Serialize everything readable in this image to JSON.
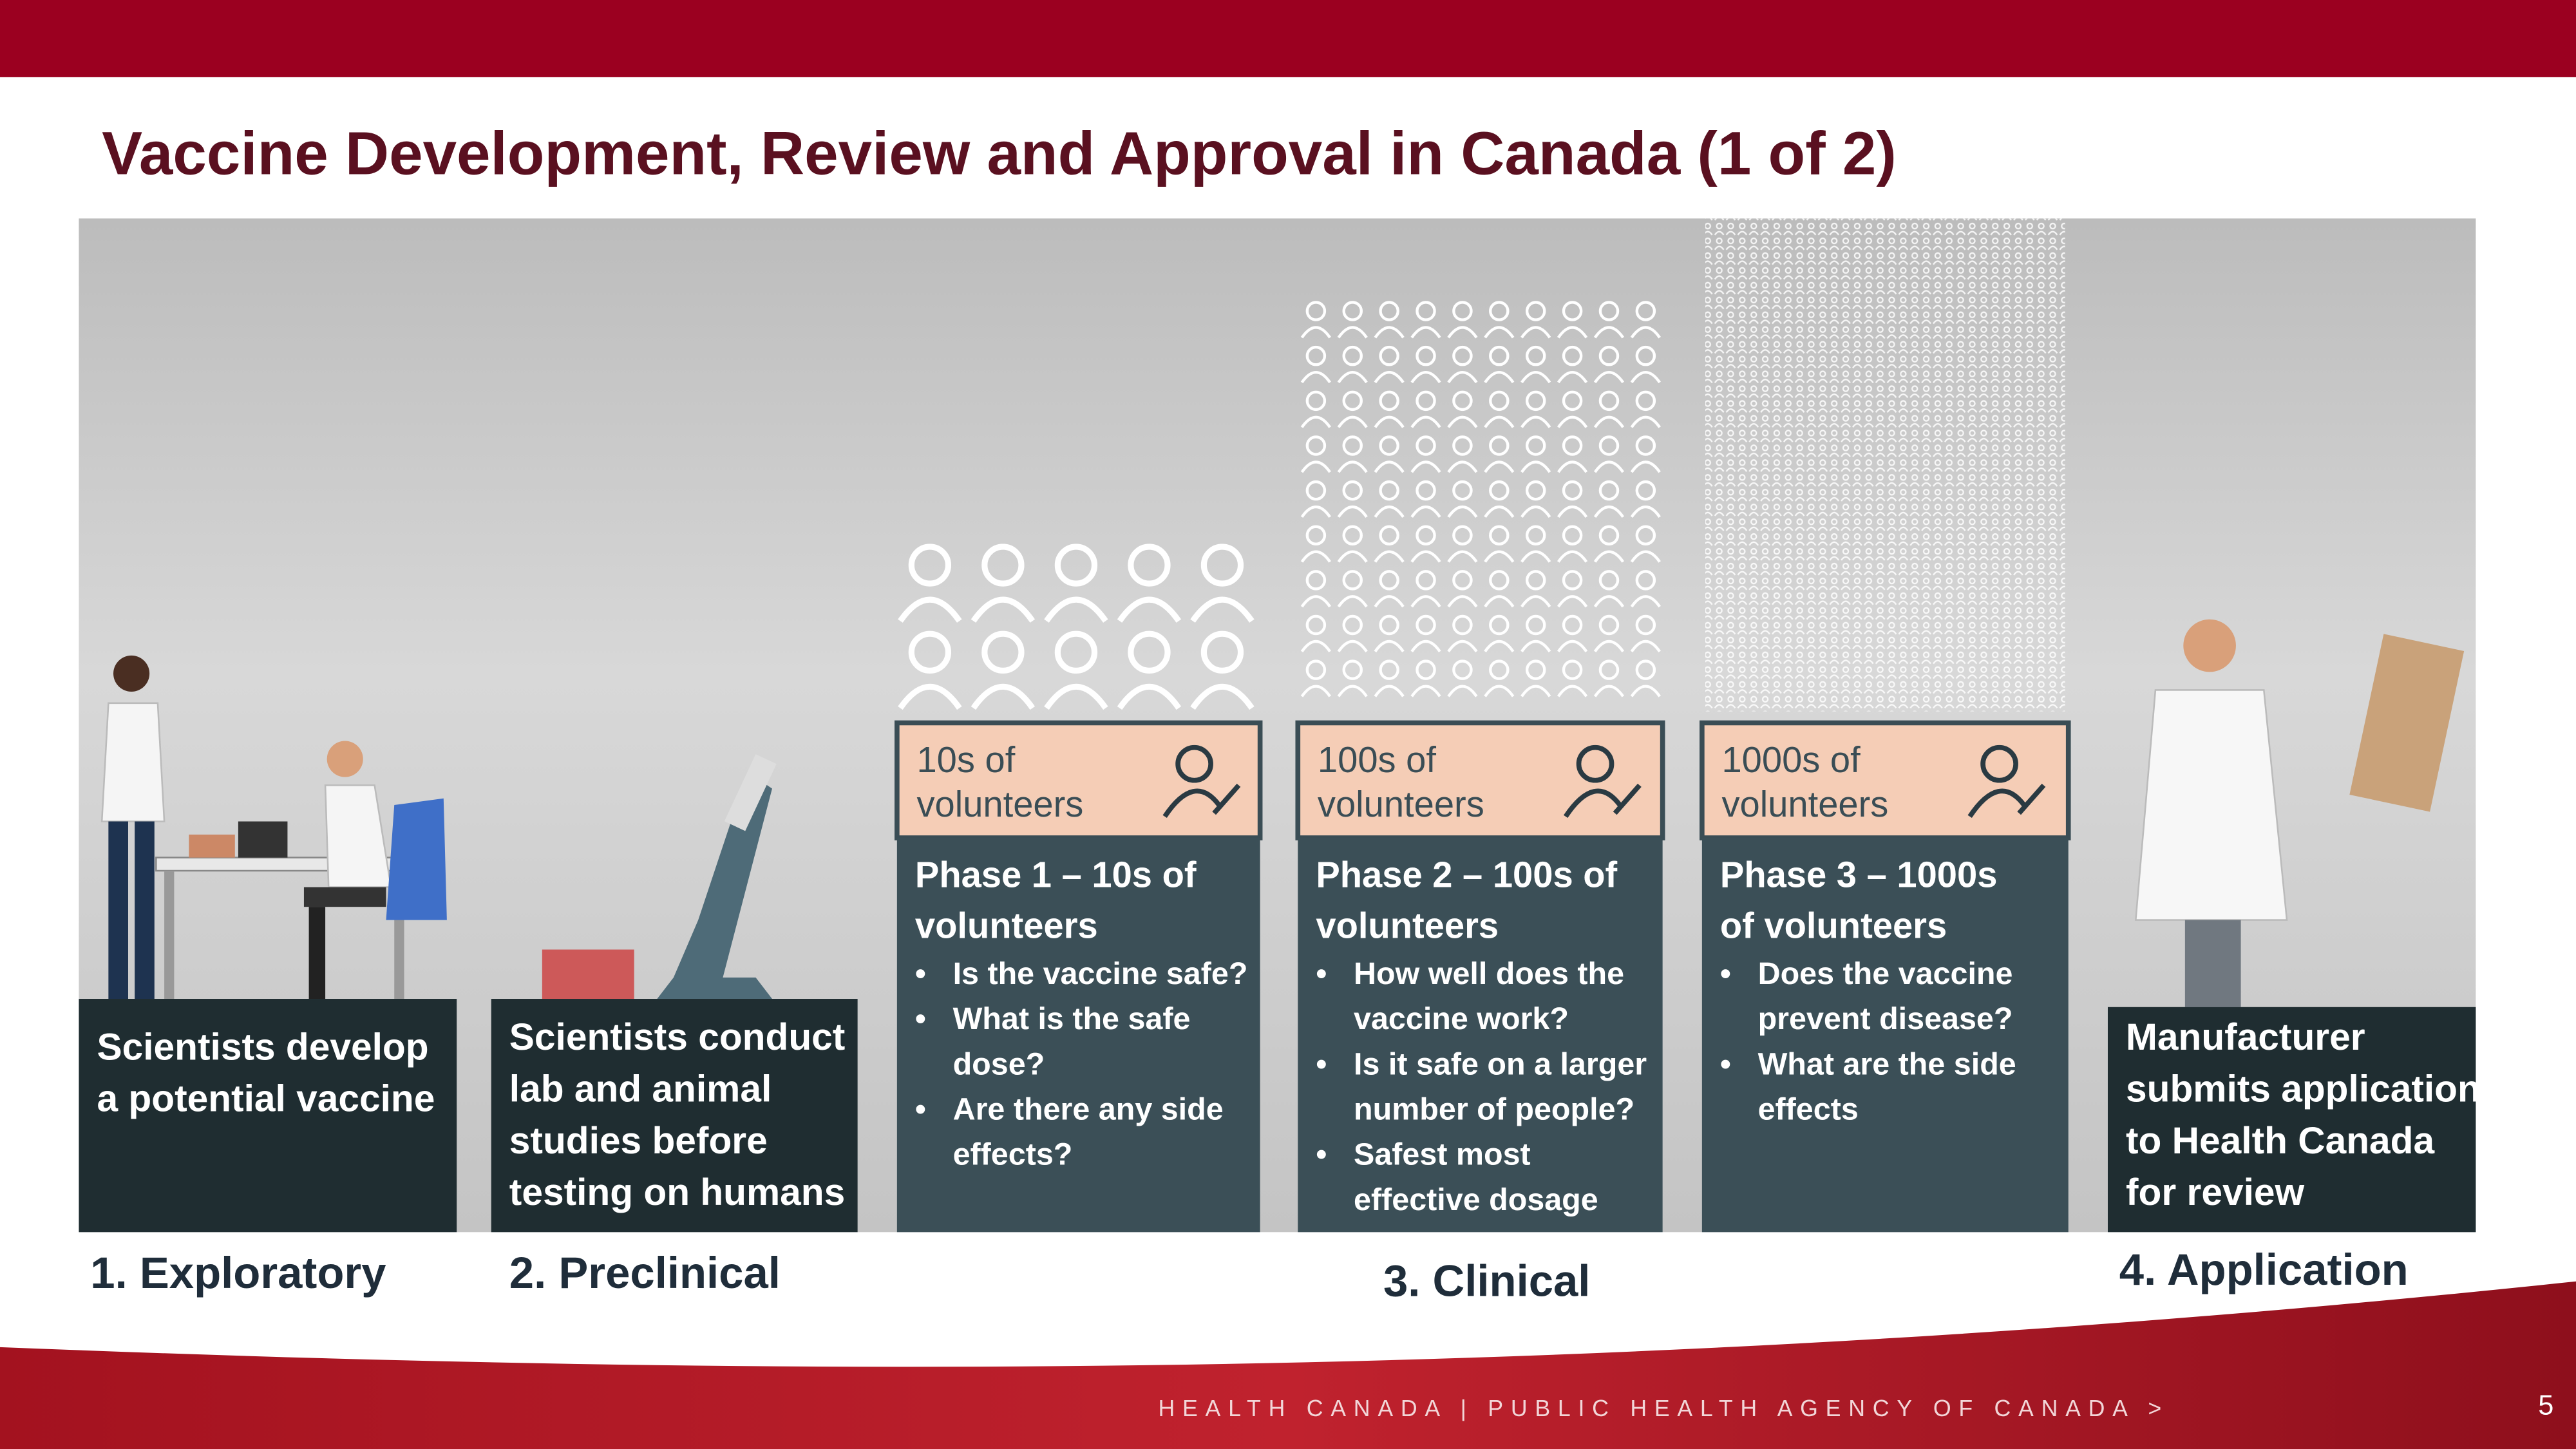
{
  "header": {
    "title": "Vaccine Development, Review and Approval in Canada (1 of 2)"
  },
  "stages": [
    {
      "lines": [
        "Scientists develop",
        "a potential vaccine"
      ],
      "label": "1. Exploratory"
    },
    {
      "lines": [
        "Scientists conduct",
        "lab and animal",
        "studies before",
        "testing on humans"
      ],
      "label": "2. Preclinical"
    },
    {
      "lines": [
        "Manufacturer",
        "submits application",
        "to Health Canada",
        "for review"
      ],
      "label": "4. Application"
    }
  ],
  "clinical": {
    "label": "3. Clinical",
    "phases": [
      {
        "badge": [
          "10s of",
          "volunteers"
        ],
        "heading": [
          "Phase 1 – 10s of",
          "volunteers"
        ],
        "bullets": [
          [
            "Is the vaccine safe?"
          ],
          [
            "What is the safe",
            "dose?"
          ],
          [
            "Are there any side",
            "effects?"
          ]
        ]
      },
      {
        "badge": [
          "100s of",
          "volunteers"
        ],
        "heading": [
          "Phase 2 – 100s of",
          "volunteers"
        ],
        "bullets": [
          [
            "How well does the",
            "vaccine work?"
          ],
          [
            "Is it safe on a larger",
            "number of people?"
          ],
          [
            "Safest most",
            "effective dosage"
          ]
        ]
      },
      {
        "badge": [
          "1000s of",
          "volunteers"
        ],
        "heading": [
          "Phase 3 – 1000s",
          "of volunteers"
        ],
        "bullets": [
          [
            "Does the vaccine",
            "prevent disease?"
          ],
          [
            "What are the side",
            "effects"
          ]
        ]
      }
    ]
  },
  "footer": {
    "text": "HEALTH CANADA | PUBLIC HEALTH AGENCY OF CANADA >",
    "page": "5"
  }
}
